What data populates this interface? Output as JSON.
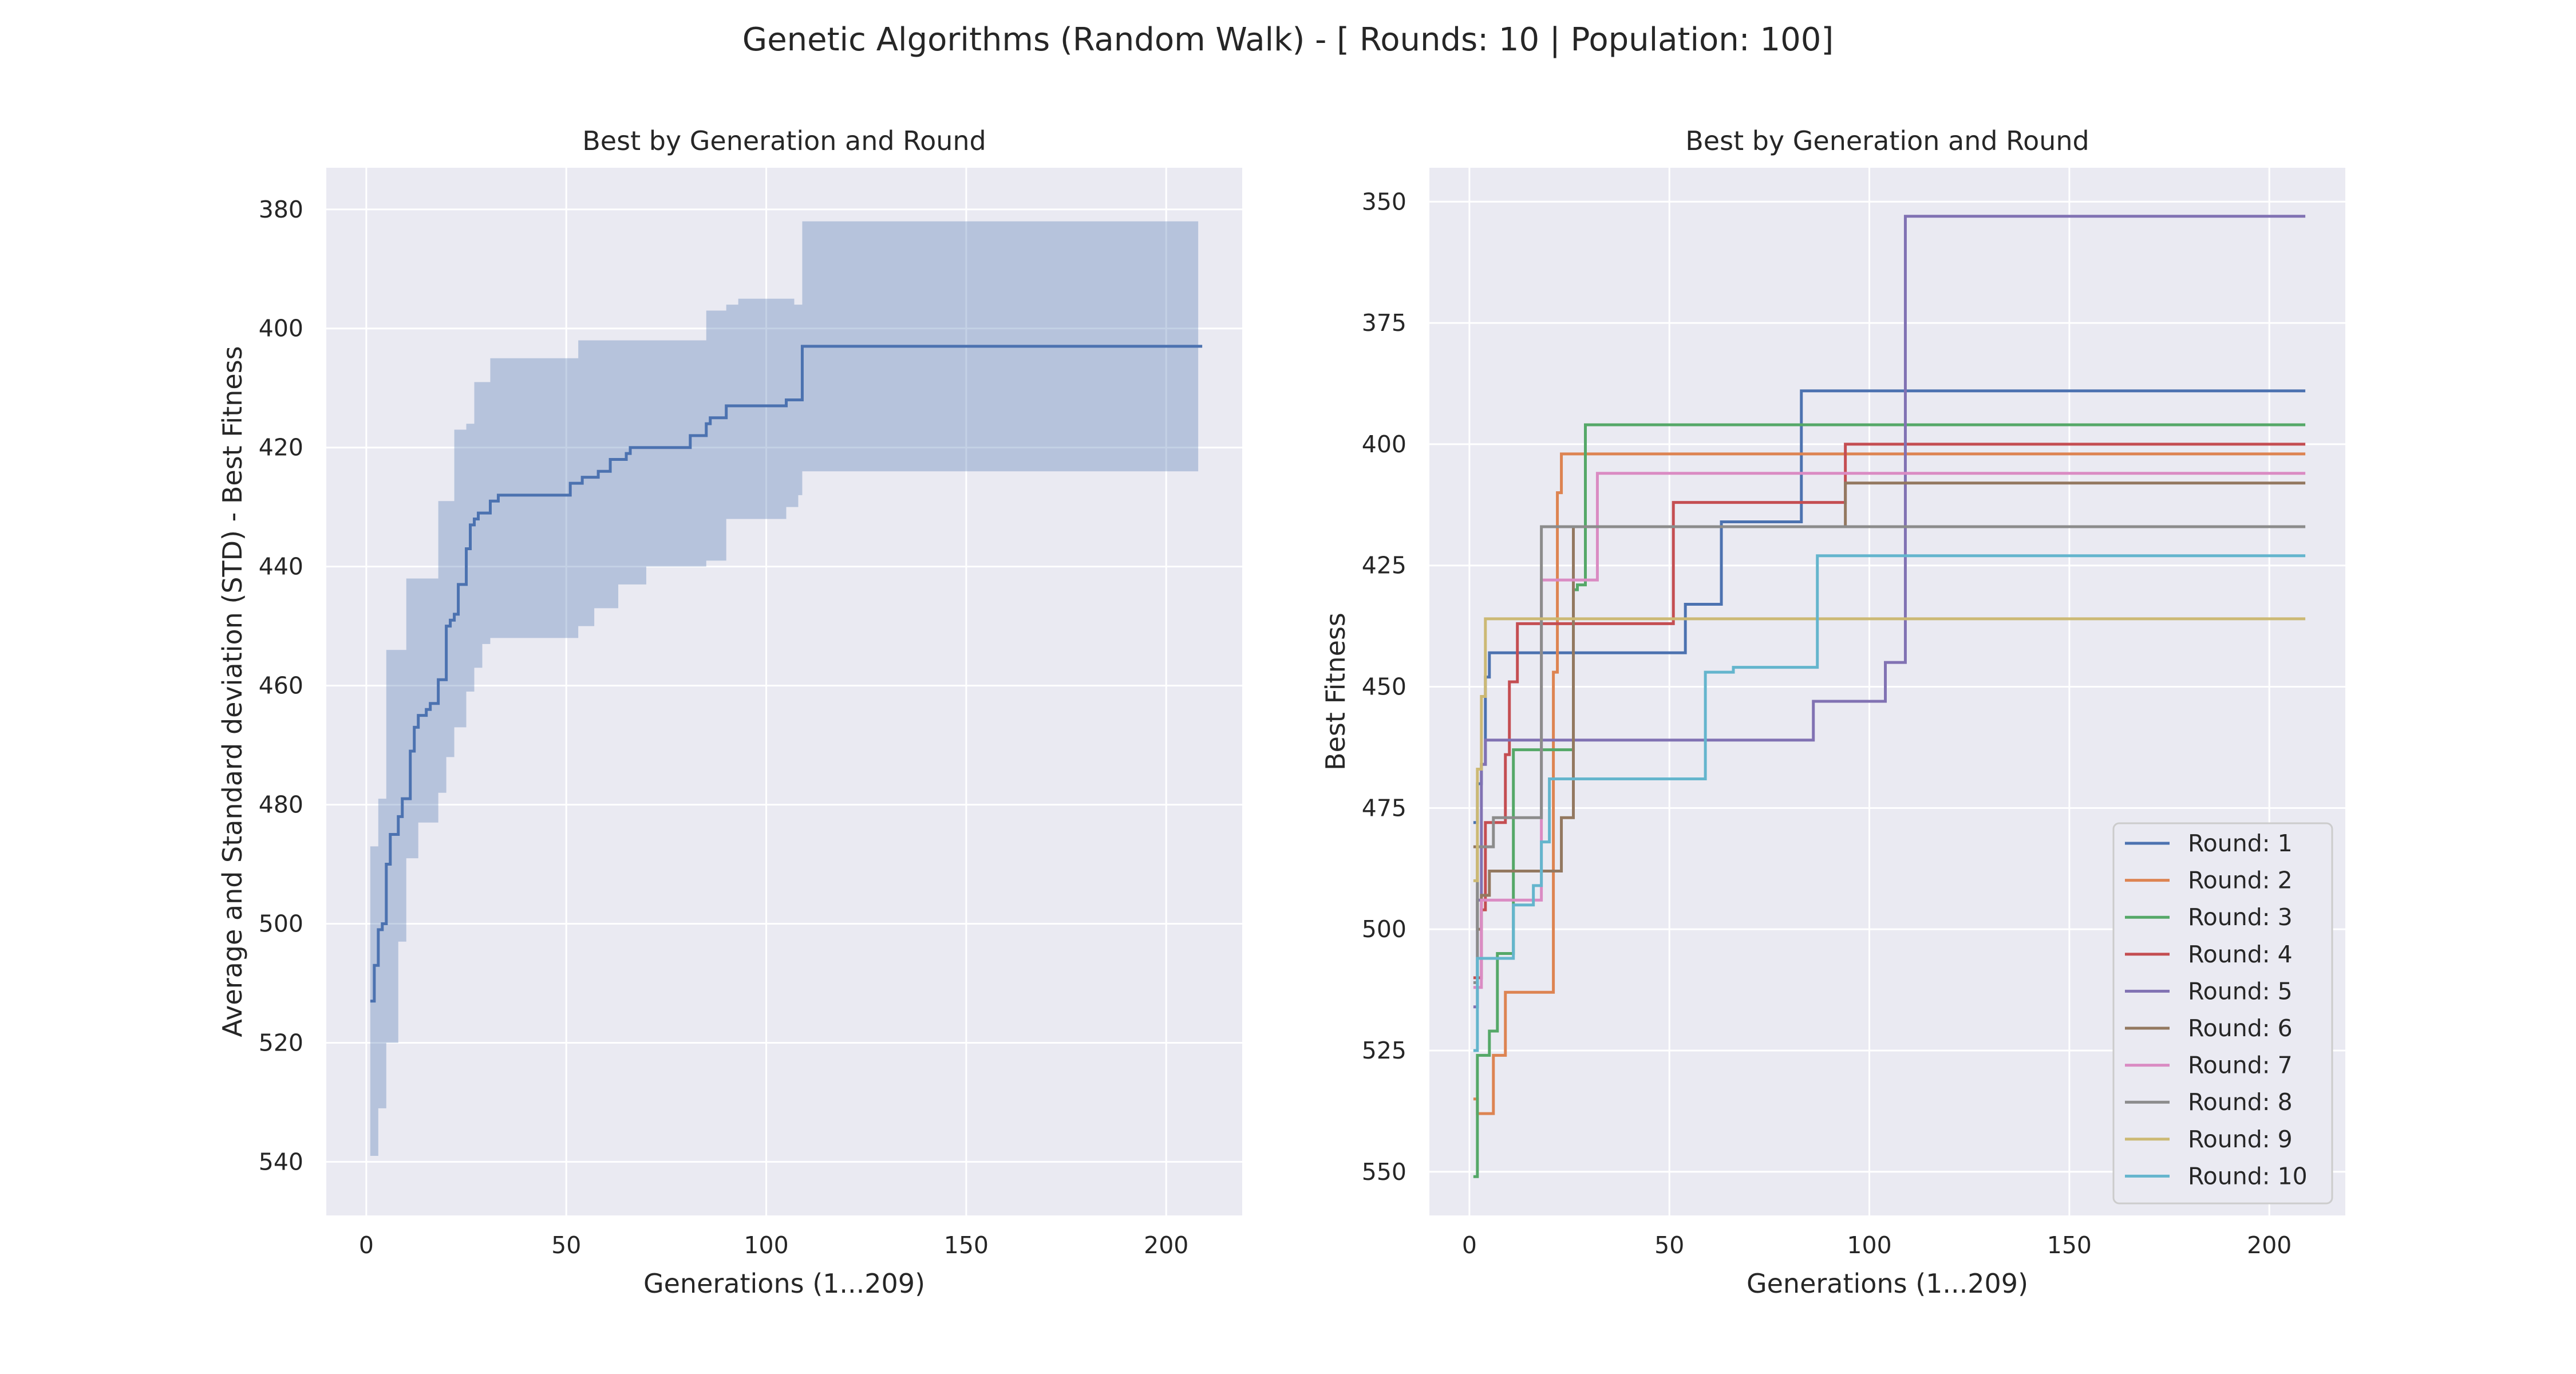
{
  "figure": {
    "suptitle": "Genetic Algorithms (Random Walk) - [ Rounds: 10 | Population: 100]",
    "background": "#ffffff",
    "axes_bg": "#eaeaf2",
    "grid_color": "#ffffff"
  },
  "chart_data": [
    {
      "type": "line",
      "title": "Best by Generation and Round",
      "xlabel": "Generations (1...209)",
      "ylabel": "Average and Standard deviation (STD) - Best Fitness",
      "xlim": [
        -10,
        219
      ],
      "ylim": [
        549,
        373
      ],
      "y_inverted": true,
      "xticks": [
        0,
        50,
        100,
        150,
        200
      ],
      "yticks": [
        380,
        400,
        420,
        440,
        460,
        480,
        500,
        520,
        540
      ],
      "grid": true,
      "line_color": "#4c72b0",
      "band_color": "#4c72b0",
      "series": [
        {
          "mean_x": [
            1,
            2,
            3,
            4,
            5,
            6,
            8,
            9,
            10,
            11,
            12,
            13,
            15,
            16,
            17,
            18,
            20,
            21,
            22,
            23,
            25,
            26,
            27,
            28,
            29,
            31,
            32,
            33,
            50,
            51,
            53,
            54,
            57,
            58,
            60,
            61,
            63,
            65,
            66,
            70,
            80,
            81,
            83,
            85,
            86,
            87,
            90,
            91,
            93,
            94,
            99,
            100,
            104,
            105,
            107,
            108,
            109,
            209
          ],
          "mean_y": [
            513,
            507,
            501,
            500,
            490,
            485,
            482,
            479,
            479,
            471,
            467,
            465,
            464,
            463,
            463,
            459,
            450,
            449,
            448,
            443,
            437,
            433,
            432,
            431,
            431,
            429,
            429,
            428,
            428,
            426,
            426,
            425,
            425,
            424,
            424,
            422,
            422,
            421,
            420,
            420,
            420,
            418,
            418,
            416,
            415,
            415,
            413,
            413,
            413,
            413,
            413,
            413,
            413,
            412,
            412,
            412,
            403,
            403
          ],
          "upper_x": [
            1,
            3,
            5,
            8,
            10,
            13,
            16,
            18,
            20,
            22,
            25,
            27,
            29,
            31,
            50,
            53,
            57,
            63,
            70,
            80,
            85,
            90,
            93,
            98,
            100,
            105,
            107,
            108,
            109,
            208
          ],
          "upper_y": [
            487,
            479,
            454,
            454,
            442,
            442,
            442,
            429,
            429,
            417,
            416,
            409,
            409,
            405,
            405,
            402,
            402,
            402,
            402,
            402,
            397,
            396,
            395,
            395,
            395,
            395,
            396,
            396,
            382,
            382
          ],
          "lower_x": [
            1,
            3,
            5,
            8,
            10,
            13,
            16,
            18,
            20,
            22,
            25,
            27,
            29,
            31,
            50,
            53,
            57,
            63,
            70,
            80,
            85,
            90,
            93,
            98,
            100,
            105,
            107,
            108,
            109,
            208
          ],
          "lower_y": [
            539,
            531,
            520,
            503,
            489,
            483,
            483,
            478,
            472,
            467,
            461,
            457,
            453,
            452,
            452,
            450,
            447,
            443,
            440,
            440,
            439,
            432,
            432,
            432,
            432,
            430,
            430,
            428,
            424,
            424
          ]
        }
      ]
    },
    {
      "type": "line",
      "title": "Best by Generation and Round",
      "xlabel": "Generations (1...209)",
      "ylabel": "Best Fitness",
      "xlim": [
        -10,
        219
      ],
      "ylim": [
        559,
        343
      ],
      "y_inverted": true,
      "xticks": [
        0,
        50,
        100,
        150,
        200
      ],
      "yticks": [
        350,
        375,
        400,
        425,
        450,
        475,
        500,
        525,
        550
      ],
      "grid": true,
      "legend": "bottom-right",
      "series": [
        {
          "name": "Round: 1",
          "color": "#4c72b0",
          "x": [
            1,
            2,
            3,
            4,
            5,
            53,
            54,
            62,
            63,
            82,
            83,
            209
          ],
          "y": [
            478,
            470,
            466,
            448,
            443,
            443,
            433,
            433,
            416,
            416,
            389,
            389
          ]
        },
        {
          "name": "Round: 2",
          "color": "#dd8452",
          "x": [
            1,
            2,
            5,
            6,
            8,
            9,
            20,
            21,
            22,
            23,
            209
          ],
          "y": [
            535,
            538,
            538,
            526,
            526,
            513,
            513,
            447,
            410,
            402,
            402
          ]
        },
        {
          "name": "Round: 3",
          "color": "#55a868",
          "x": [
            1,
            2,
            4,
            5,
            6,
            7,
            10,
            11,
            25,
            26,
            27,
            29,
            209
          ],
          "y": [
            551,
            526,
            526,
            521,
            521,
            505,
            505,
            463,
            463,
            430,
            429,
            396,
            396
          ]
        },
        {
          "name": "Round: 4",
          "color": "#c44e52",
          "x": [
            1,
            3,
            4,
            8,
            9,
            10,
            11,
            12,
            13,
            50,
            51,
            93,
            94,
            209
          ],
          "y": [
            510,
            496,
            478,
            478,
            464,
            449,
            449,
            437,
            437,
            437,
            412,
            412,
            400,
            400
          ]
        },
        {
          "name": "Round: 5",
          "color": "#8172b3",
          "x": [
            1,
            2,
            3,
            4,
            85,
            86,
            100,
            101,
            104,
            105,
            108,
            109,
            209
          ],
          "y": [
            516,
            494,
            466,
            461,
            461,
            453,
            453,
            453,
            445,
            445,
            445,
            353,
            353
          ]
        },
        {
          "name": "Round: 6",
          "color": "#937860",
          "x": [
            1,
            2,
            3,
            5,
            6,
            22,
            23,
            24,
            25,
            26,
            93,
            94,
            209
          ],
          "y": [
            483,
            500,
            493,
            488,
            488,
            488,
            477,
            477,
            477,
            417,
            417,
            408,
            408
          ]
        },
        {
          "name": "Round: 7",
          "color": "#da8bc3",
          "x": [
            1,
            3,
            17,
            18,
            19,
            31,
            32,
            209
          ],
          "y": [
            512,
            494,
            494,
            428,
            428,
            428,
            406,
            406
          ]
        },
        {
          "name": "Round: 8",
          "color": "#8c8c8c",
          "x": [
            1,
            2,
            5,
            6,
            17,
            18,
            209
          ],
          "y": [
            511,
            483,
            483,
            477,
            477,
            417,
            417
          ]
        },
        {
          "name": "Round: 9",
          "color": "#ccb974",
          "x": [
            1,
            2,
            3,
            4,
            209
          ],
          "y": [
            490,
            467,
            452,
            436,
            436
          ]
        },
        {
          "name": "Round: 10",
          "color": "#64b5cd",
          "x": [
            1,
            2,
            3,
            10,
            11,
            15,
            16,
            17,
            18,
            19,
            20,
            58,
            59,
            65,
            66,
            86,
            87,
            209
          ],
          "y": [
            525,
            506,
            506,
            506,
            495,
            495,
            491,
            491,
            482,
            482,
            469,
            469,
            447,
            447,
            446,
            446,
            423,
            423
          ]
        }
      ]
    }
  ]
}
